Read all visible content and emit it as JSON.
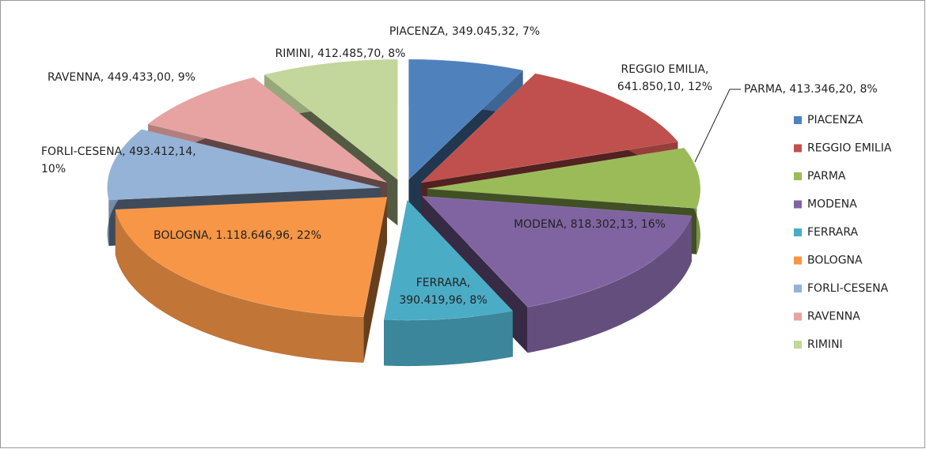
{
  "chart_data": {
    "type": "pie3d",
    "categories": [
      "PIACENZA",
      "REGGIO EMILIA",
      "PARMA",
      "MODENA",
      "FERRARA",
      "BOLOGNA",
      "FORLI-CESENA",
      "RAVENNA",
      "RIMINI"
    ],
    "values": [
      349045.32,
      641850.1,
      413346.2,
      818302.13,
      390419.96,
      1118646.96,
      493412.14,
      449433.0,
      412485.7
    ],
    "percents": [
      7,
      12,
      8,
      16,
      8,
      22,
      10,
      9,
      8
    ],
    "value_labels": [
      "PIACENZA, 349.045,32, 7%",
      "REGGIO EMILIA, 641.850,10, 12%",
      "PARMA, 413.346,20, 8%",
      "MODENA, 818.302,13, 16%",
      "FERRARA, 390.419,96, 8%",
      "BOLOGNA, 1.118.646,96, 22%",
      "FORLI-CESENA, 493.412,14, 10%",
      "RAVENNA, 449.433,00, 9%",
      "RIMINI, 412.485,70, 8%"
    ],
    "colors": [
      "#4f81bd",
      "#c0504d",
      "#9bbb59",
      "#8064a2",
      "#4bacc6",
      "#f79646",
      "#95b3d7",
      "#e6a3a2",
      "#c3d69b"
    ],
    "legend": "right"
  }
}
